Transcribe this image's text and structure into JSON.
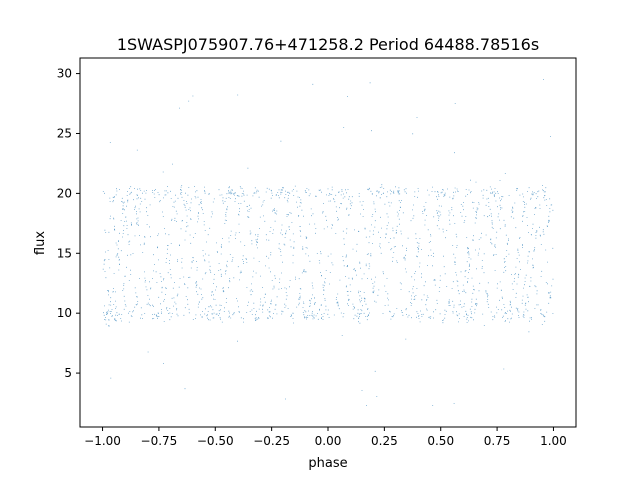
{
  "chart_data": {
    "type": "scatter",
    "title": "1SWASPJ075907.76+471258.2 Period 64488.78516s",
    "xlabel": "phase",
    "ylabel": "flux",
    "xlim": [
      -1.1,
      1.1
    ],
    "ylim": [
      0.5,
      31.3
    ],
    "xticks": [
      -1.0,
      -0.75,
      -0.5,
      -0.25,
      0.0,
      0.25,
      0.5,
      0.75,
      1.0
    ],
    "xtick_labels": [
      "−1.00",
      "−0.75",
      "−0.50",
      "−0.25",
      "0.00",
      "0.25",
      "0.50",
      "0.75",
      "1.00"
    ],
    "yticks": [
      5,
      10,
      15,
      20,
      25,
      30
    ],
    "ytick_labels": [
      "5",
      "10",
      "15",
      "20",
      "25",
      "30"
    ],
    "grid": false,
    "legend": "none",
    "marker_color": "#1f77b4",
    "series": [
      {
        "description_points": "dense folded light curve sampled in phase -1 to 1",
        "x": [
          -1.0,
          -0.9,
          -0.8,
          -0.7,
          -0.6,
          -0.5,
          -0.4,
          -0.3,
          -0.2,
          -0.1,
          0.0,
          0.1,
          0.2,
          0.3,
          0.4,
          0.5,
          0.6,
          0.7,
          0.8,
          0.9,
          1.0
        ],
        "y_upper_envelope": [
          19.5,
          20.5,
          21.0,
          20.0,
          19.5,
          20.0,
          21.0,
          20.0,
          19.0,
          20.5,
          21.0,
          20.0,
          20.0,
          20.5,
          20.5,
          20.0,
          20.5,
          20.0,
          21.0,
          20.0,
          19.5
        ],
        "y_lower_envelope": [
          11.0,
          10.0,
          9.8,
          10.0,
          9.8,
          10.0,
          9.8,
          10.0,
          10.0,
          10.5,
          10.0,
          10.0,
          9.8,
          10.0,
          9.8,
          10.0,
          10.0,
          10.0,
          10.0,
          9.8,
          10.5
        ]
      }
    ]
  }
}
